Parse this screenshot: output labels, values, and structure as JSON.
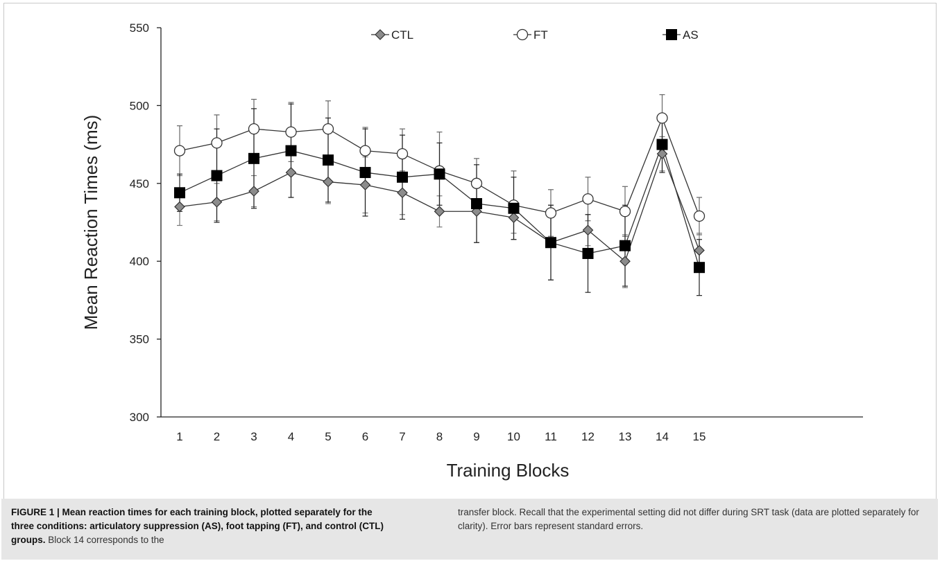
{
  "chart_data": {
    "type": "line",
    "title": "",
    "xlabel": "Training Blocks",
    "ylabel": "Mean Reaction Times (ms)",
    "ylim": [
      300,
      550
    ],
    "yticks": [
      300,
      350,
      400,
      450,
      500,
      550
    ],
    "x": [
      1,
      2,
      3,
      4,
      5,
      6,
      7,
      8,
      9,
      10,
      11,
      12,
      13,
      14,
      15
    ],
    "grid": false,
    "legend_position": "top",
    "series": [
      {
        "name": "CTL",
        "marker": "diamond",
        "fill": "#8c8c8c",
        "values": [
          435,
          438,
          445,
          457,
          451,
          449,
          444,
          432,
          432,
          428,
          412,
          420,
          400,
          469,
          407
        ],
        "errors": [
          12,
          12,
          10,
          16,
          14,
          18,
          14,
          10,
          20,
          10,
          24,
          10,
          17,
          11,
          11
        ]
      },
      {
        "name": "FT",
        "marker": "circle",
        "fill": "#ffffff",
        "values": [
          471,
          476,
          485,
          483,
          485,
          471,
          469,
          458,
          450,
          436,
          431,
          440,
          432,
          492,
          429
        ],
        "errors": [
          16,
          18,
          19,
          19,
          18,
          15,
          16,
          25,
          16,
          22,
          15,
          14,
          16,
          15,
          12
        ]
      },
      {
        "name": "AS",
        "marker": "square",
        "fill": "#000000",
        "values": [
          444,
          455,
          466,
          471,
          465,
          457,
          454,
          456,
          437,
          434,
          412,
          405,
          410,
          475,
          396
        ],
        "errors": [
          12,
          30,
          32,
          30,
          27,
          28,
          27,
          20,
          25,
          20,
          24,
          25,
          26,
          18,
          18
        ]
      }
    ]
  },
  "caption": {
    "bold_text": "FIGURE 1 | Mean reaction times for each training block, plotted separately for the three conditions: articulatory suppression (AS), foot tapping (FT), and control (CTL) groups.",
    "left_text": " Block 14 corresponds to the",
    "right_text": "transfer block. Recall that the experimental setting did not differ during SRT task (data are plotted separately for clarity). Error bars represent standard errors."
  }
}
